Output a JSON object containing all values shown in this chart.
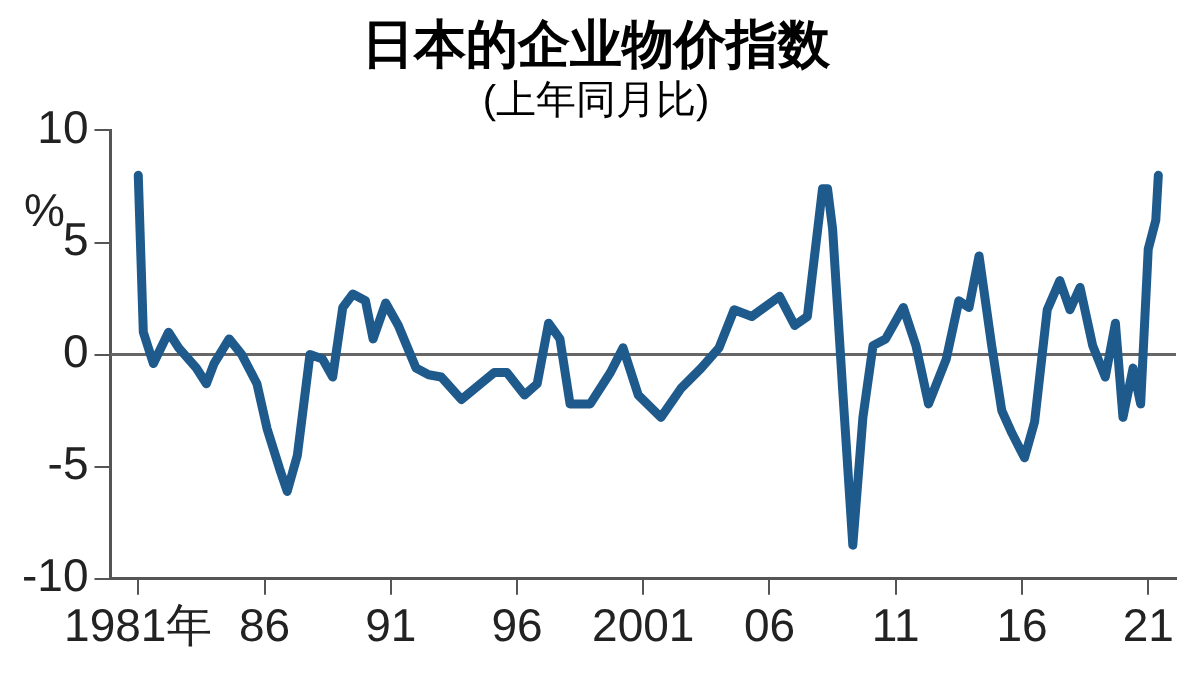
{
  "chart_data": {
    "type": "line",
    "title": "日本的企业物价指数",
    "subtitle": "(上年同月比)",
    "ylabel": "%",
    "x": [
      1981.0,
      1981.2,
      1981.6,
      1982.2,
      1982.6,
      1983.3,
      1983.7,
      1984.0,
      1984.6,
      1985.1,
      1985.7,
      1986.1,
      1986.6,
      1986.9,
      1987.3,
      1987.8,
      1988.3,
      1988.7,
      1989.1,
      1989.5,
      1990.0,
      1990.3,
      1990.8,
      1991.3,
      1992.0,
      1992.5,
      1993.0,
      1993.8,
      1995.1,
      1995.6,
      1996.3,
      1996.8,
      1997.25,
      1997.7,
      1998.1,
      1998.9,
      1999.7,
      2000.2,
      2000.8,
      2001.7,
      2002.5,
      2003.3,
      2004.0,
      2004.6,
      2005.3,
      2006.4,
      2007.0,
      2007.5,
      2008.1,
      2008.3,
      2008.5,
      2008.9,
      2009.3,
      2009.7,
      2010.1,
      2010.6,
      2011.3,
      2011.8,
      2012.3,
      2013.0,
      2013.5,
      2013.9,
      2014.3,
      2014.8,
      2015.2,
      2015.6,
      2016.1,
      2016.5,
      2017.0,
      2017.5,
      2017.9,
      2018.3,
      2018.8,
      2019.3,
      2019.7,
      2020.0,
      2020.4,
      2020.7,
      2021.0,
      2021.3,
      2021.4
    ],
    "series": [
      {
        "color": "#1f5a8c",
        "values": [
          8.0,
          1.0,
          -0.4,
          1.0,
          0.3,
          -0.6,
          -1.3,
          -0.4,
          0.7,
          0,
          -1.3,
          -3.3,
          -5.1,
          -6.1,
          -4.5,
          0,
          -0.2,
          -1.0,
          2.1,
          2.7,
          2.4,
          0.7,
          2.3,
          1.3,
          -0.6,
          -0.9,
          -1.0,
          -2.0,
          -0.8,
          -0.8,
          -1.8,
          -1.3,
          1.4,
          0.7,
          -2.2,
          -2.2,
          -0.8,
          0.3,
          -1.8,
          -2.8,
          -1.5,
          -0.6,
          0.3,
          2.0,
          1.7,
          2.6,
          1.3,
          1.7,
          7.4,
          7.4,
          5.6,
          -1.6,
          -8.5,
          -2.8,
          0.4,
          0.7,
          2.1,
          0.4,
          -2.2,
          -0.2,
          2.4,
          2.1,
          4.4,
          0.4,
          -2.5,
          -3.5,
          -4.6,
          -3.0,
          2.0,
          3.3,
          2.0,
          3.0,
          0.4,
          -1.0,
          1.4,
          -2.8,
          -0.6,
          -2.2,
          4.7,
          6.0,
          8.0
        ]
      }
    ],
    "xlim": [
      1979.9,
      2022.1
    ],
    "xticks": [
      {
        "value": 1981,
        "label": "1981年"
      },
      {
        "value": 1986,
        "label": "86"
      },
      {
        "value": 1991,
        "label": "91"
      },
      {
        "value": 1996,
        "label": "96"
      },
      {
        "value": 2001,
        "label": "2001"
      },
      {
        "value": 2006,
        "label": "06"
      },
      {
        "value": 2011,
        "label": "11"
      },
      {
        "value": 2016,
        "label": "16"
      },
      {
        "value": 2021,
        "label": "21"
      }
    ],
    "ylim": [
      -10,
      10
    ],
    "yticks": [
      10,
      5,
      0,
      -5,
      -10
    ],
    "ref_lines": [
      {
        "axis": "y",
        "value": 0,
        "color": "#666666"
      }
    ],
    "grid": false,
    "legend": false,
    "marker": "none",
    "line_style": "solid"
  }
}
